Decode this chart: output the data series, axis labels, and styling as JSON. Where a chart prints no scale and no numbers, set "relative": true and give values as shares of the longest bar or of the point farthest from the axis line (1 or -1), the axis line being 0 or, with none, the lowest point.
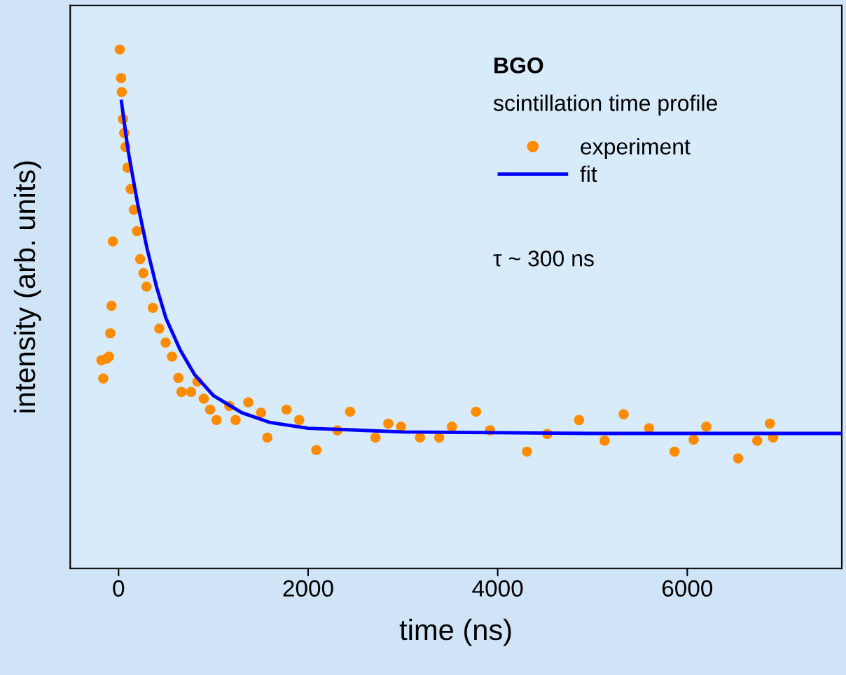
{
  "chart_data": {
    "type": "scatter",
    "relative": true,
    "xlabel": "time (ns)",
    "ylabel": "intensity (arb. units)",
    "xlim": [
      -510,
      7630
    ],
    "xticks": [
      0,
      2000,
      4000,
      6000
    ],
    "grid": false,
    "legend": "top right",
    "tick_labels": "x",
    "annotations": [
      "BGO",
      "scintillation time profile",
      "τ ~ 300 ns"
    ],
    "series": [
      {
        "name": "experiment",
        "marker": "circle",
        "color": "#ff8c00",
        "x": [
          -181,
          -161,
          -128,
          -101,
          -87,
          -74,
          -60,
          13,
          27,
          34,
          47,
          60,
          74,
          94,
          128,
          161,
          195,
          228,
          262,
          295,
          362,
          430,
          497,
          564,
          631,
          664,
          765,
          832,
          899,
          966,
          1034,
          1168,
          1235,
          1369,
          1503,
          1570,
          1772,
          1906,
          2087,
          2309,
          2443,
          2711,
          2846,
          2980,
          3181,
          3383,
          3517,
          3772,
          3919,
          4309,
          4523,
          4859,
          5128,
          5329,
          5597,
          5866,
          6067,
          6201,
          6537,
          6738,
          6872,
          6906
        ],
        "values": [
          0.401,
          0.366,
          0.404,
          0.408,
          0.453,
          0.506,
          0.63,
          1.0,
          0.945,
          0.918,
          0.866,
          0.839,
          0.812,
          0.772,
          0.731,
          0.691,
          0.65,
          0.596,
          0.569,
          0.543,
          0.502,
          0.462,
          0.435,
          0.408,
          0.367,
          0.34,
          0.34,
          0.36,
          0.327,
          0.306,
          0.286,
          0.313,
          0.286,
          0.32,
          0.3,
          0.252,
          0.306,
          0.286,
          0.228,
          0.266,
          0.302,
          0.252,
          0.279,
          0.273,
          0.252,
          0.252,
          0.273,
          0.302,
          0.266,
          0.225,
          0.259,
          0.286,
          0.246,
          0.297,
          0.27,
          0.225,
          0.248,
          0.273,
          0.212,
          0.246,
          0.279,
          0.252
        ]
      },
      {
        "name": "fit",
        "type": "line",
        "line_style": "solid",
        "marker": "none",
        "color": "#0000ff",
        "x": [
          30,
          100,
          200,
          300,
          400,
          500,
          650,
          800,
          1000,
          1300,
          1600,
          2000,
          3000,
          5000,
          7630
        ],
        "values": [
          0.9,
          0.806,
          0.704,
          0.617,
          0.543,
          0.482,
          0.421,
          0.374,
          0.333,
          0.3,
          0.281,
          0.27,
          0.263,
          0.26,
          0.26
        ]
      }
    ]
  }
}
